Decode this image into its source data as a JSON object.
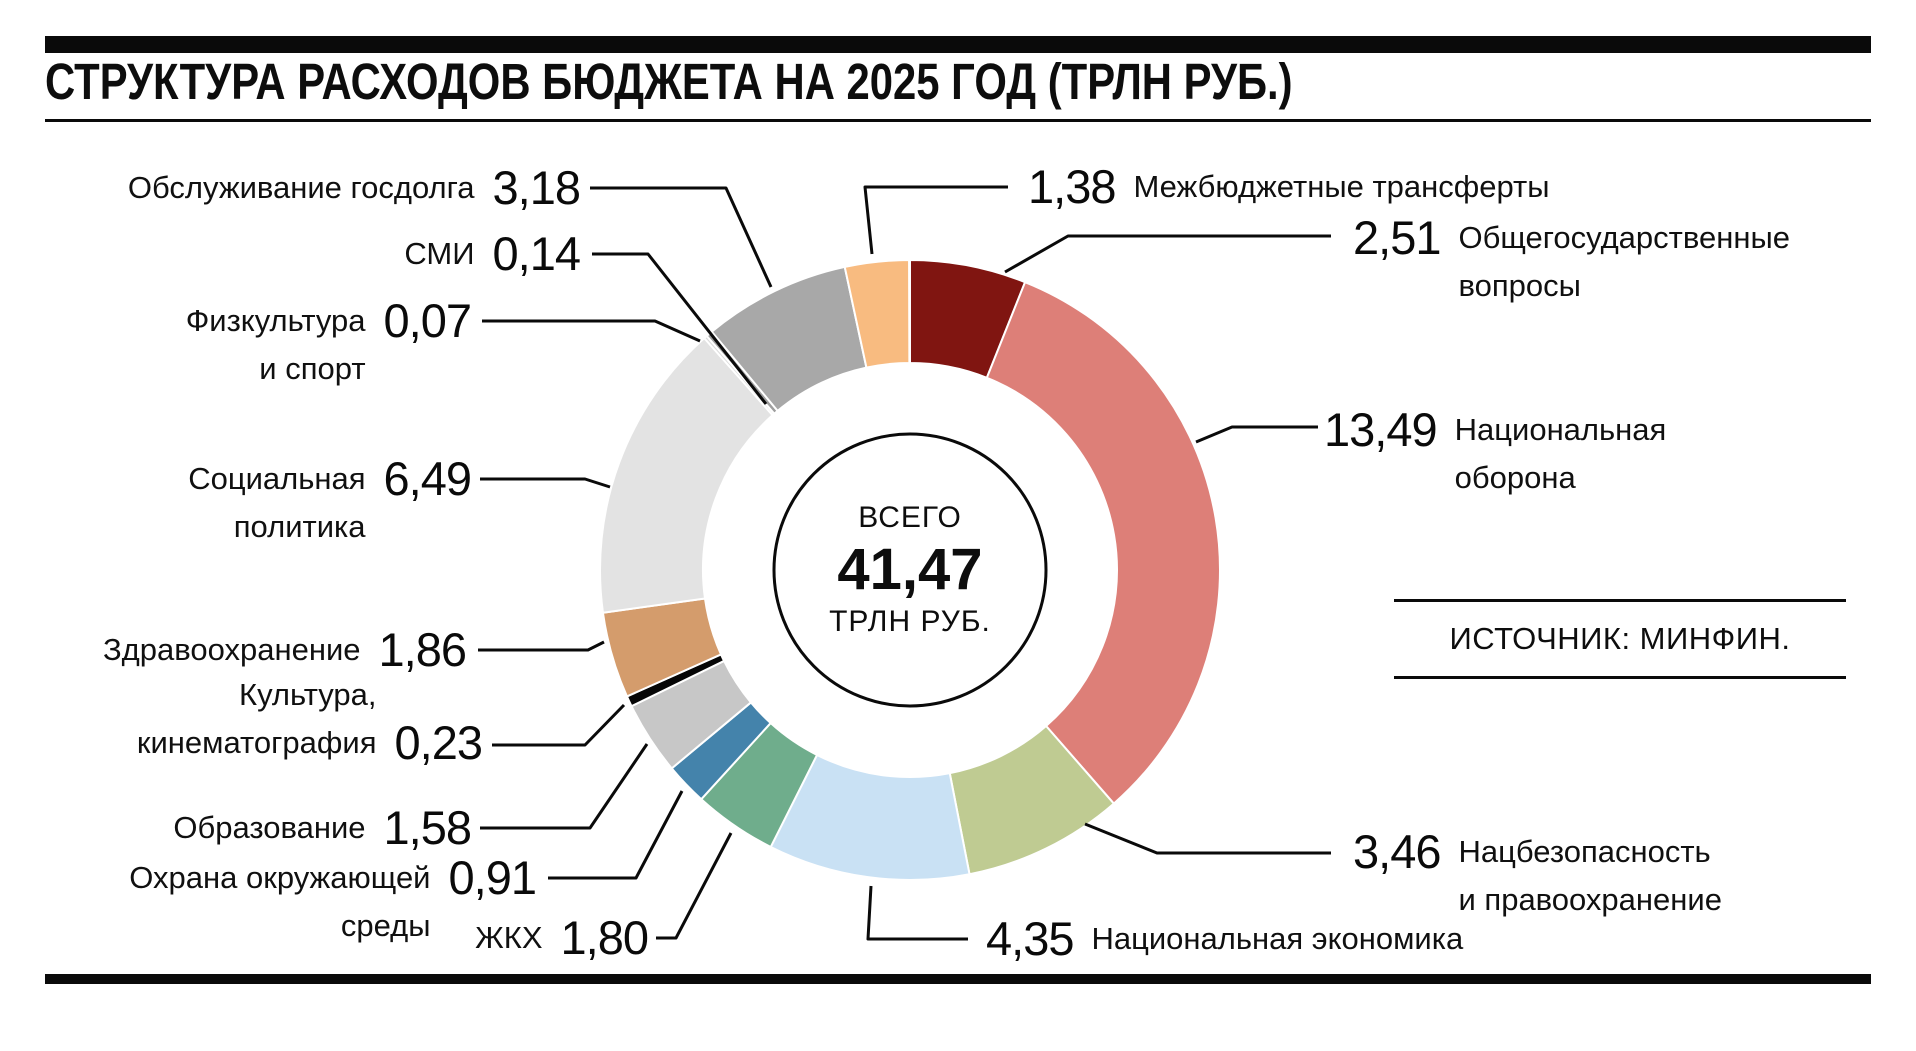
{
  "title": "СТРУКТУРА РАСХОДОВ БЮДЖЕТА НА 2025 ГОД (ТРЛН РУБ.)",
  "source": "ИСТОЧНИК: МИНФИН.",
  "center": {
    "caption_top": "ВСЕГО",
    "value": "41,47",
    "caption_bottom": "ТРЛН РУБ."
  },
  "chart_data": {
    "type": "pie",
    "variant": "donut",
    "title": "Структура расходов бюджета на 2025 год (трлн руб.)",
    "units": "трлн руб.",
    "total": 41.47,
    "total_display": "41,47",
    "direction": "clockwise",
    "start_angle_deg": 0,
    "legend_position": "around",
    "segments": [
      {
        "label": "Общегосударственные вопросы",
        "lines": [
          "Общегосударственные",
          "вопросы"
        ],
        "value": 2.51,
        "value_display": "2,51",
        "color": "#801511"
      },
      {
        "label": "Национальная оборона",
        "lines": [
          "Национальная",
          "оборона"
        ],
        "value": 13.49,
        "value_display": "13,49",
        "color": "#DD7F78"
      },
      {
        "label": "Нацбезопасность и правоохранение",
        "lines": [
          "Нацбезопасность",
          "и правоохранение"
        ],
        "value": 3.46,
        "value_display": "3,46",
        "color": "#BFCB92"
      },
      {
        "label": "Национальная экономика",
        "lines": [
          "Национальная экономика"
        ],
        "value": 4.35,
        "value_display": "4,35",
        "color": "#C9E1F4"
      },
      {
        "label": "ЖКХ",
        "lines": [
          "ЖКХ"
        ],
        "value": 1.8,
        "value_display": "1,80",
        "color": "#6FAD8C"
      },
      {
        "label": "Охрана окружающей среды",
        "lines": [
          "Охрана окружающей",
          "среды"
        ],
        "value": 0.91,
        "value_display": "0,91",
        "color": "#4483AB"
      },
      {
        "label": "Образование",
        "lines": [
          "Образование"
        ],
        "value": 1.58,
        "value_display": "1,58",
        "color": "#C7C7C7"
      },
      {
        "label": "Культура, кинематография",
        "lines": [
          "Культура,",
          "кинематография"
        ],
        "value": 0.23,
        "value_display": "0,23",
        "color": "#060606"
      },
      {
        "label": "Здравоохранение",
        "lines": [
          "Здравоохранение"
        ],
        "value": 1.86,
        "value_display": "1,86",
        "color": "#D49C6C"
      },
      {
        "label": "Социальная политика",
        "lines": [
          "Социальная",
          "политика"
        ],
        "value": 6.49,
        "value_display": "6,49",
        "color": "#E3E3E3"
      },
      {
        "label": "Физкультура и спорт",
        "lines": [
          "Физкультура",
          "и спорт"
        ],
        "value": 0.07,
        "value_display": "0,07",
        "color": "#DCDCDC"
      },
      {
        "label": "СМИ",
        "lines": [
          "СМИ"
        ],
        "value": 0.14,
        "value_display": "0,14",
        "color": "#9E9E9E"
      },
      {
        "label": "Обслуживание госдолга",
        "lines": [
          "Обслуживание госдолга"
        ],
        "value": 3.18,
        "value_display": "3,18",
        "color": "#A8A8A8"
      },
      {
        "label": "Межбюджетные трансферты",
        "lines": [
          "Межбюджетные трансферты"
        ],
        "value": 1.38,
        "value_display": "1,38",
        "color": "#F8BB80"
      }
    ]
  }
}
